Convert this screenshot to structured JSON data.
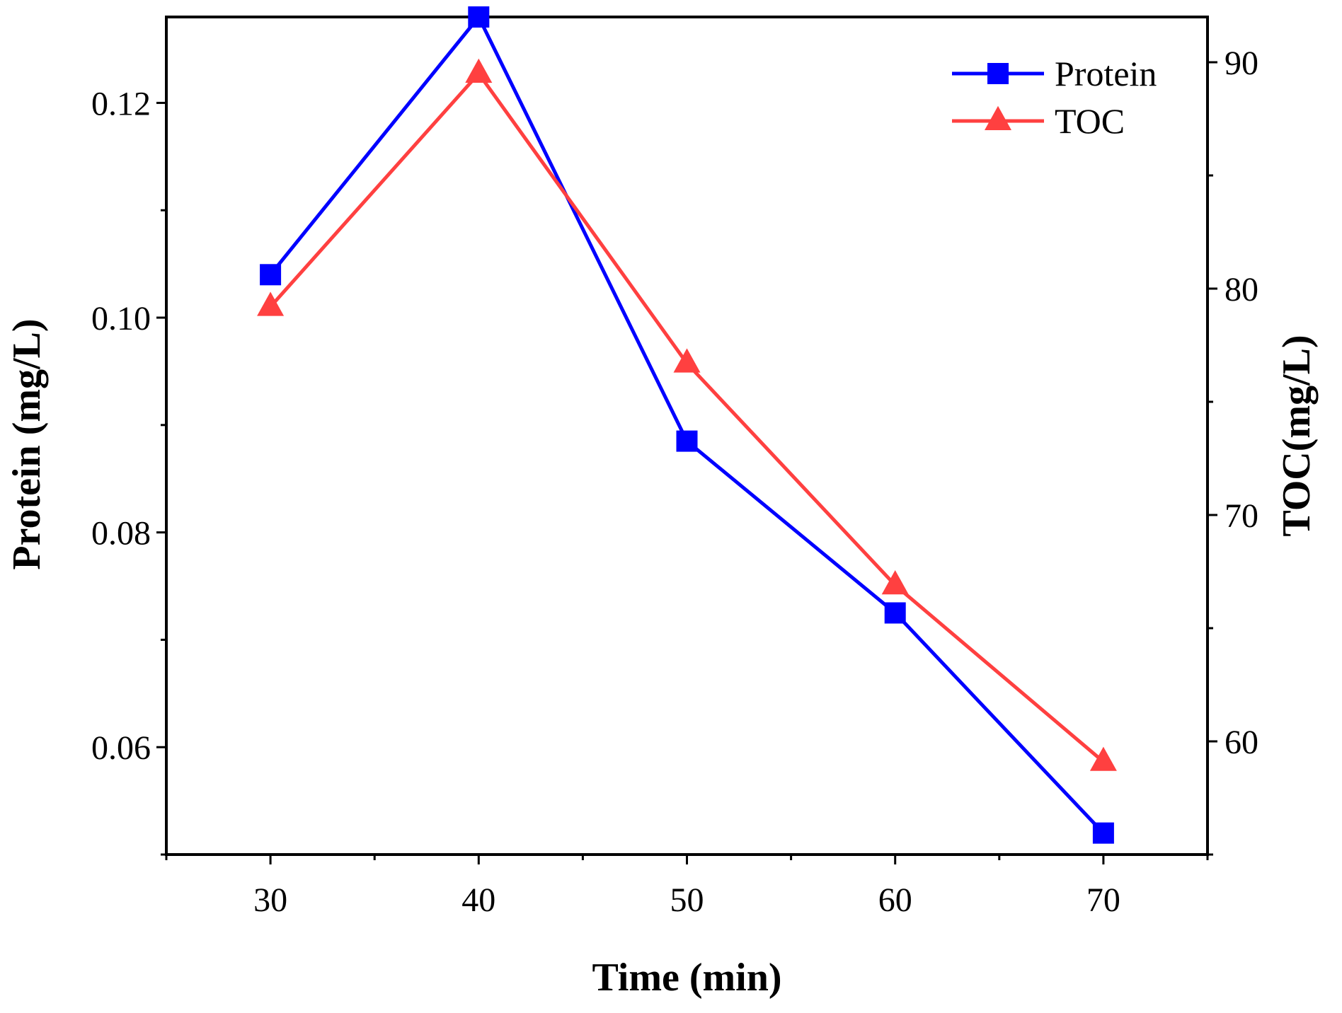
{
  "chart_data": {
    "type": "line",
    "title": "",
    "xlabel": "Time (min)",
    "ylabel": "Protein (mg/L)",
    "y2label": "TOC(mg/L)",
    "x": [
      30,
      40,
      50,
      60,
      70
    ],
    "xlim": [
      25,
      75
    ],
    "ylim": [
      0.05,
      0.128
    ],
    "y2lim": [
      55,
      92
    ],
    "xticks": [
      "30",
      "40",
      "50",
      "60",
      "70"
    ],
    "yticks": [
      "0.06",
      "0.08",
      "0.10",
      "0.12"
    ],
    "y2ticks": [
      "60",
      "70",
      "80",
      "90"
    ],
    "grid": false,
    "legend": "top-right",
    "series": [
      {
        "name": "Protein",
        "axis": "left",
        "marker": "square",
        "color": "#0000ff",
        "values": [
          0.104,
          0.128,
          0.0885,
          0.0725,
          0.052
        ]
      },
      {
        "name": "TOC",
        "axis": "right",
        "marker": "triangle",
        "color": "#ff4040",
        "values": [
          79.2,
          89.5,
          76.7,
          66.9,
          59.1
        ]
      }
    ]
  }
}
